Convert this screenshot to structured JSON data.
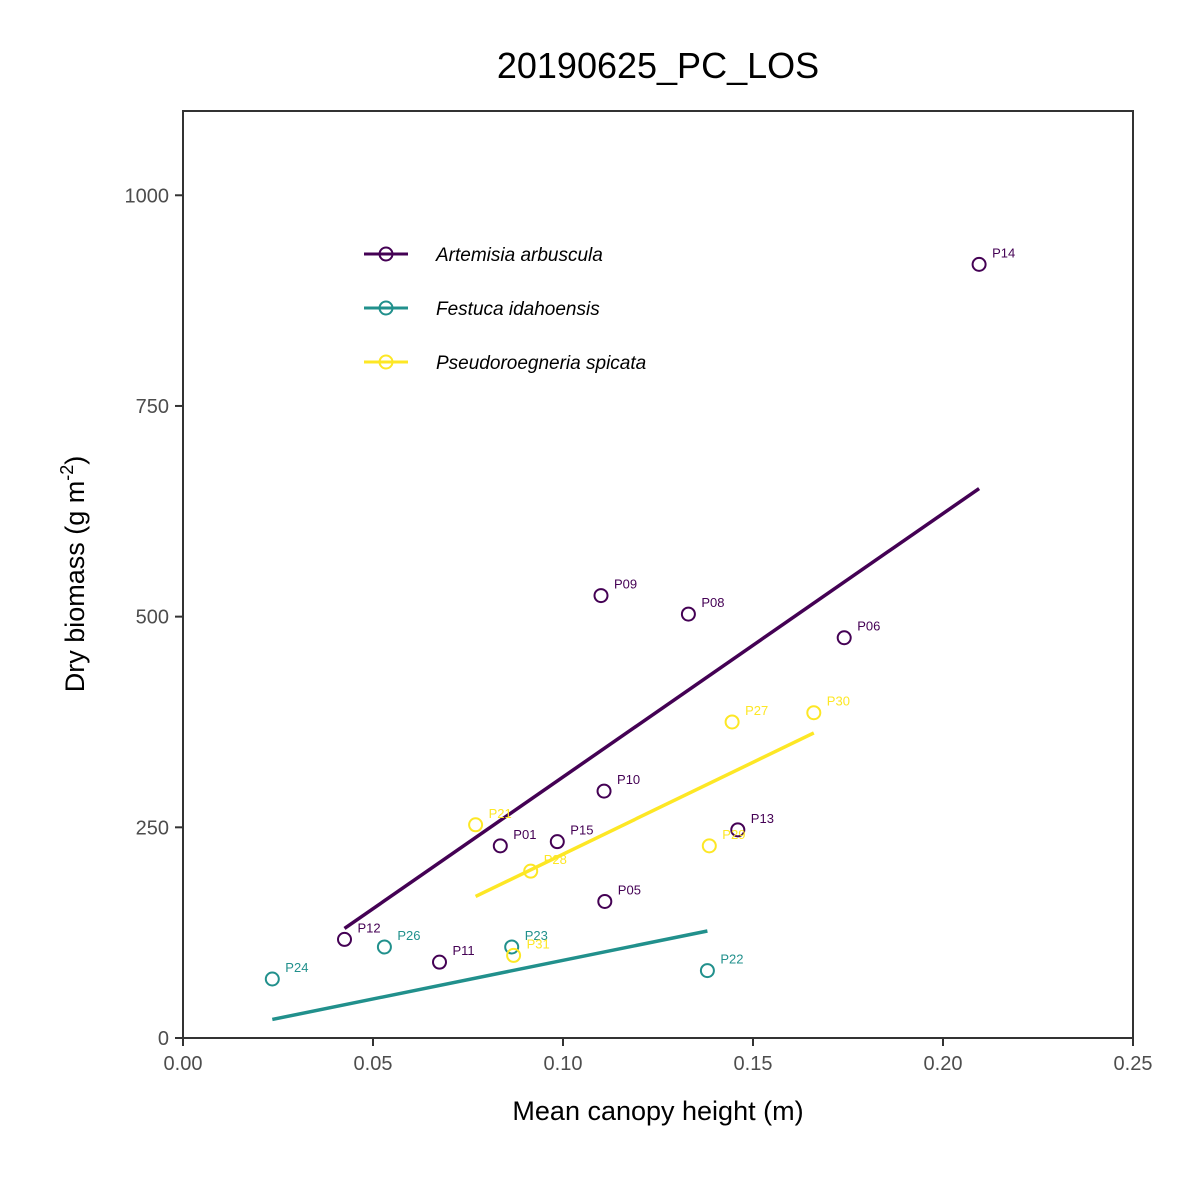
{
  "chart_data": {
    "type": "scatter",
    "title": "20190625_PC_LOS",
    "xlabel": "Mean canopy height (m)",
    "ylabel": "Dry biomass (g m",
    "ylabel_superscript": "-2",
    "ylabel_suffix": ")",
    "xlim": [
      0,
      0.25
    ],
    "ylim": [
      0,
      1100
    ],
    "x_ticks": [
      0,
      0.05,
      0.1,
      0.15,
      0.2,
      0.25
    ],
    "x_tick_labels": [
      "0.00",
      "0.05",
      "0.10",
      "0.15",
      "0.20",
      "0.25"
    ],
    "y_ticks": [
      0,
      250,
      500,
      750,
      1000
    ],
    "y_tick_labels": [
      "0",
      "250",
      "500",
      "750",
      "1000"
    ],
    "legend_position": "top-left",
    "series": [
      {
        "name": "Artemisia arbuscula",
        "color": "#440154",
        "points": [
          {
            "label": "P14",
            "x": 0.2095,
            "y": 918
          },
          {
            "label": "P09",
            "x": 0.11,
            "y": 525
          },
          {
            "label": "P08",
            "x": 0.133,
            "y": 503
          },
          {
            "label": "P06",
            "x": 0.174,
            "y": 475
          },
          {
            "label": "P10",
            "x": 0.1108,
            "y": 293
          },
          {
            "label": "P13",
            "x": 0.146,
            "y": 247
          },
          {
            "label": "P15",
            "x": 0.0985,
            "y": 233
          },
          {
            "label": "P01",
            "x": 0.0835,
            "y": 228
          },
          {
            "label": "P05",
            "x": 0.111,
            "y": 162
          },
          {
            "label": "P12",
            "x": 0.0425,
            "y": 117
          },
          {
            "label": "P11",
            "x": 0.0675,
            "y": 90
          }
        ],
        "fit": {
          "x": [
            0.0425,
            0.2095
          ],
          "y": [
            130,
            652
          ]
        }
      },
      {
        "name": "Festuca idahoensis",
        "color": "#21908C",
        "points": [
          {
            "label": "P26",
            "x": 0.053,
            "y": 108
          },
          {
            "label": "P23",
            "x": 0.0865,
            "y": 108
          },
          {
            "label": "P24",
            "x": 0.0235,
            "y": 70
          },
          {
            "label": "P22",
            "x": 0.138,
            "y": 80
          }
        ],
        "fit": {
          "x": [
            0.0235,
            0.138
          ],
          "y": [
            22,
            127
          ]
        }
      },
      {
        "name": "Pseudoroegneria spicata",
        "color": "#FDE725",
        "points": [
          {
            "label": "P30",
            "x": 0.166,
            "y": 386
          },
          {
            "label": "P27",
            "x": 0.1445,
            "y": 375
          },
          {
            "label": "P21",
            "x": 0.077,
            "y": 253
          },
          {
            "label": "P29",
            "x": 0.1385,
            "y": 228
          },
          {
            "label": "P28",
            "x": 0.0915,
            "y": 198
          },
          {
            "label": "P31",
            "x": 0.087,
            "y": 98
          }
        ],
        "fit": {
          "x": [
            0.077,
            0.166
          ],
          "y": [
            168,
            362
          ]
        }
      }
    ]
  }
}
